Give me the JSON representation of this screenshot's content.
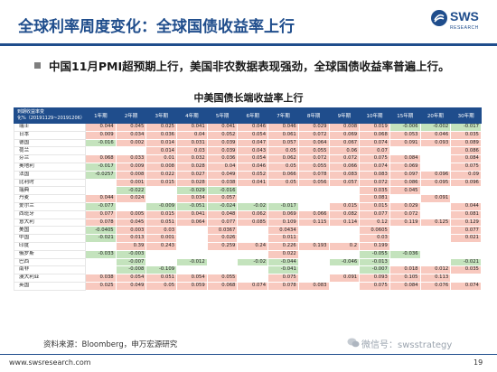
{
  "slide": {
    "title": "全球利率周度变化：全球国债收益率上行",
    "bullet": "中国11月PMI超预期上行，美国非农数据表现强劲，全球国债收益率普遍上行。",
    "logo": {
      "name": "SWS",
      "sub": "RESEARCH"
    }
  },
  "table": {
    "title": "中美国债长端收益率上行",
    "corner_label": "到期收益率变化%（20191129~20191206）",
    "columns": [
      "1年期",
      "2年期",
      "3年期",
      "4年期",
      "5年期",
      "6年期",
      "7年期",
      "8年期",
      "9年期",
      "10年期",
      "15年期",
      "20年期",
      "30年期"
    ],
    "colors": {
      "header": "#1f4d8c",
      "positive": "#f8c9bf",
      "negative": "#c4e3bd"
    },
    "rows": [
      {
        "country": "瑞士",
        "values": [
          "0.044",
          "0.045",
          "0.025",
          "0.041",
          "0.041",
          "0.046",
          "0.046",
          "0.029",
          "0.008",
          "0.019",
          "-0.006",
          "-0.002",
          "-0.017"
        ]
      },
      {
        "country": "日本",
        "values": [
          "0.009",
          "0.034",
          "0.036",
          "0.04",
          "0.052",
          "0.054",
          "0.061",
          "0.072",
          "0.069",
          "0.068",
          "0.053",
          "0.046",
          "0.035"
        ]
      },
      {
        "country": "德国",
        "values": [
          "-0.016",
          "0.002",
          "0.014",
          "0.031",
          "0.039",
          "0.047",
          "0.057",
          "0.064",
          "0.067",
          "0.074",
          "0.091",
          "0.093",
          "0.089"
        ]
      },
      {
        "country": "荷兰",
        "values": [
          "",
          "",
          "0.014",
          "0.03",
          "0.039",
          "0.043",
          "0.05",
          "0.055",
          "0.06",
          "0.07",
          "",
          "",
          "0.086"
        ]
      },
      {
        "country": "芬兰",
        "values": [
          "0.068",
          "0.033",
          "0.01",
          "0.032",
          "0.036",
          "0.054",
          "0.062",
          "0.072",
          "0.072",
          "0.075",
          "0.084",
          "",
          "0.084"
        ]
      },
      {
        "country": "奥地利",
        "values": [
          "-0.017",
          "0.009",
          "0.008",
          "0.028",
          "0.04",
          "0.046",
          "0.05",
          "0.055",
          "0.066",
          "0.074",
          "0.069",
          "",
          "0.075"
        ]
      },
      {
        "country": "法国",
        "values": [
          "-0.0257",
          "0.008",
          "0.022",
          "0.027",
          "0.049",
          "0.052",
          "0.066",
          "0.078",
          "0.083",
          "0.083",
          "0.097",
          "0.096",
          "0.09"
        ]
      },
      {
        "country": "比利时",
        "values": [
          "",
          "0.001",
          "0.015",
          "0.028",
          "0.038",
          "0.041",
          "0.05",
          "0.056",
          "0.057",
          "0.072",
          "0.086",
          "0.095",
          "0.096"
        ]
      },
      {
        "country": "瑞典",
        "values": [
          "",
          "-0.022",
          "",
          "-0.029",
          "-0.016",
          "",
          "",
          "",
          "",
          "0.035",
          "0.045",
          "",
          ""
        ]
      },
      {
        "country": "丹麦",
        "values": [
          "0.044",
          "0.024",
          "",
          "0.034",
          "0.057",
          "",
          "",
          "",
          "",
          "0.081",
          "",
          "0.091",
          ""
        ]
      },
      {
        "country": "爱尔兰",
        "values": [
          "-0.077",
          "",
          "-0.009",
          "-0.051",
          "-0.024",
          "-0.02",
          "-0.017",
          "",
          "0.015",
          "0.015",
          "0.029",
          "",
          "0.044"
        ]
      },
      {
        "country": "西班牙",
        "values": [
          "0.077",
          "0.005",
          "0.015",
          "0.041",
          "0.048",
          "0.062",
          "0.069",
          "0.066",
          "0.082",
          "0.077",
          "0.072",
          "",
          "0.081"
        ]
      },
      {
        "country": "意大利",
        "values": [
          "0.078",
          "0.045",
          "0.051",
          "0.064",
          "0.077",
          "0.085",
          "0.109",
          "0.115",
          "0.114",
          "0.12",
          "0.119",
          "0.125",
          "0.129"
        ]
      },
      {
        "country": "美国",
        "values": [
          "-0.0405",
          "0.003",
          "0.03",
          "",
          "0.0367",
          "",
          "0.0434",
          "",
          "",
          "0.0605",
          "",
          "",
          "0.077"
        ]
      },
      {
        "country": "中国",
        "values": [
          "-0.021",
          "0.013",
          "0.001",
          "",
          "0.026",
          "",
          "0.011",
          "",
          "",
          "0.03",
          "",
          "",
          "0.021"
        ]
      },
      {
        "country": "印度",
        "values": [
          "",
          "0.39",
          "0.243",
          "",
          "0.259",
          "0.24",
          "0.226",
          "0.193",
          "0.2",
          "0.199",
          "",
          "",
          ""
        ]
      },
      {
        "country": "俄罗斯",
        "values": [
          "-0.033",
          "-0.003",
          "",
          "",
          "",
          "",
          "0.022",
          "",
          "",
          "-0.055",
          "-0.036",
          "",
          ""
        ]
      },
      {
        "country": "巴西",
        "values": [
          "",
          "-0.007",
          "",
          "-0.012",
          "",
          "-0.02",
          "-0.044",
          "",
          "-0.046",
          "-0.013",
          "",
          "",
          "-0.021"
        ]
      },
      {
        "country": "南非",
        "values": [
          "",
          "-0.008",
          "-0.109",
          "",
          "",
          "",
          "-0.041",
          "",
          "",
          "-0.007",
          "0.018",
          "0.012",
          "0.035"
        ]
      },
      {
        "country": "澳大利亚",
        "values": [
          "0.038",
          "0.054",
          "0.051",
          "0.054",
          "0.055",
          "",
          "0.075",
          "",
          "0.091",
          "0.093",
          "0.105",
          "0.113",
          ""
        ]
      },
      {
        "country": "英国",
        "values": [
          "0.025",
          "0.049",
          "0.05",
          "0.059",
          "0.068",
          "0.074",
          "0.078",
          "0.083",
          "",
          "0.075",
          "0.084",
          "0.076",
          "0.074"
        ]
      }
    ]
  },
  "footer": {
    "source": "资料来源：Bloomberg，申万宏源研究",
    "watermark": "微信号：swsstrategy",
    "url": "www.swsresearch.com",
    "page": "19"
  }
}
